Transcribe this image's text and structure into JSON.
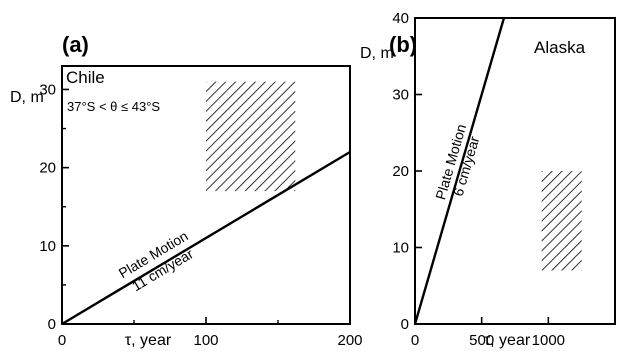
{
  "chart_data": [
    {
      "type": "line",
      "panel_label": "(a)",
      "region": "Chile",
      "condition": "37°S < θ ≤ 43°S",
      "xlabel": "τ,  year",
      "ylabel": "D, m",
      "xlim": [
        0,
        200
      ],
      "ylim": [
        0,
        33
      ],
      "x_ticks": [
        0,
        100,
        200
      ],
      "x_minor_ticks": [
        50,
        150
      ],
      "y_ticks": [
        0,
        10,
        20,
        30
      ],
      "y_minor_ticks": [
        5,
        15,
        25
      ],
      "grid": false,
      "series": [
        {
          "name_lines": [
            "Plate Motion",
            "11 cm/year"
          ],
          "x": [
            0,
            200
          ],
          "y": [
            0,
            22
          ]
        }
      ],
      "hatched_region": {
        "x": [
          100,
          162
        ],
        "y": [
          17,
          31
        ]
      }
    },
    {
      "type": "line",
      "panel_label": "(b)",
      "region": "Alaska",
      "xlabel": "τ,  year",
      "ylabel": "D, m",
      "xlim": [
        0,
        1500
      ],
      "ylim": [
        0,
        40
      ],
      "x_ticks": [
        0,
        500,
        1000
      ],
      "y_ticks": [
        0,
        10,
        20,
        30,
        40
      ],
      "grid": false,
      "series": [
        {
          "name_lines": [
            "Plate Motion",
            "6 cm/year"
          ],
          "x": [
            0,
            667
          ],
          "y": [
            0,
            40
          ]
        }
      ],
      "hatched_region": {
        "x": [
          950,
          1250
        ],
        "y": [
          7,
          20
        ]
      }
    }
  ]
}
